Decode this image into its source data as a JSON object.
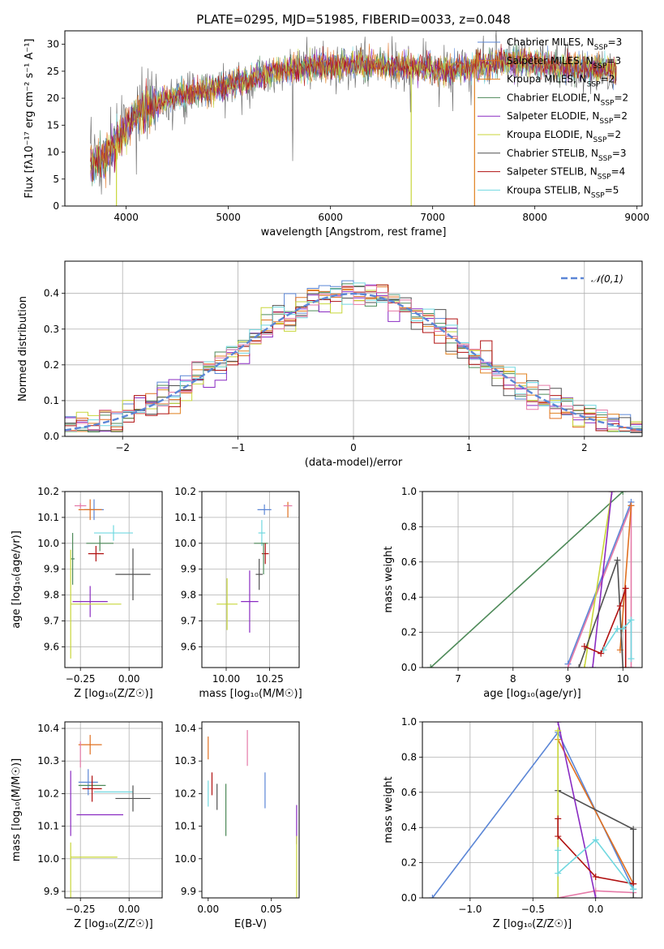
{
  "title": "PLATE=0295, MJD=51985, FIBERID=0033, z=0.048",
  "colors": {
    "chabrier_miles": "#5b86d6",
    "salpeter_miles": "#e07020",
    "kroupa_miles": "#e0801f",
    "chabrier_elodie": "#4e8a59",
    "salpeter_elodie": "#8a2bc2",
    "kroupa_elodie": "#c8d63a",
    "chabrier_stelib": "#505050",
    "salpeter_stelib": "#b01010",
    "kroupa_stelib": "#70d8e0",
    "pink": "#e57aa8"
  },
  "chart_data": [
    {
      "id": "spectrum",
      "type": "line",
      "xlabel": "wavelength [Angstrom, rest frame]",
      "ylabel": "Flux [fλ10⁻¹⁷ erg cm⁻² s⁻¹ A⁻¹]",
      "xlim": [
        3400,
        9050
      ],
      "ylim": [
        0,
        32.5
      ],
      "xticks": [
        4000,
        5000,
        6000,
        7000,
        8000,
        9000
      ],
      "yticks": [
        0,
        5,
        10,
        15,
        20,
        25,
        30
      ],
      "grid": false,
      "legend_position": "top-right",
      "legend": [
        {
          "label": "Chabrier MILES, N",
          "sub": "SSP",
          "suffix": "=3",
          "color": "#5b86d6"
        },
        {
          "label": "Salpeter MILES, N",
          "sub": "SSP",
          "suffix": "=3",
          "color": "#e07020"
        },
        {
          "label": "Kroupa MILES, N",
          "sub": "SSP",
          "suffix": "=2",
          "color": "#e0801f"
        },
        {
          "label": "Chabrier ELODIE, N",
          "sub": "SSP",
          "suffix": "=2",
          "color": "#4e8a59"
        },
        {
          "label": "Salpeter ELODIE, N",
          "sub": "SSP",
          "suffix": "=2",
          "color": "#8a2bc2"
        },
        {
          "label": "Kroupa ELODIE, N",
          "sub": "SSP",
          "suffix": "=2",
          "color": "#c8d63a"
        },
        {
          "label": "Chabrier STELIB, N",
          "sub": "SSP",
          "suffix": "=3",
          "color": "#505050"
        },
        {
          "label": "Salpeter STELIB, N",
          "sub": "SSP",
          "suffix": "=4",
          "color": "#b01010"
        },
        {
          "label": "Kroupa STELIB, N",
          "sub": "SSP",
          "suffix": "=5",
          "color": "#70d8e0"
        }
      ],
      "continuum": [
        [
          3650,
          8
        ],
        [
          3800,
          9
        ],
        [
          3950,
          13
        ],
        [
          4100,
          17
        ],
        [
          4300,
          19
        ],
        [
          4500,
          20.5
        ],
        [
          4800,
          21.5
        ],
        [
          5000,
          22.5
        ],
        [
          5200,
          23.5
        ],
        [
          5500,
          25
        ],
        [
          5800,
          25.8
        ],
        [
          6000,
          26
        ],
        [
          6300,
          26.2
        ],
        [
          6600,
          26
        ],
        [
          6900,
          25.8
        ],
        [
          7100,
          25
        ],
        [
          7400,
          25.8
        ],
        [
          7800,
          27
        ],
        [
          8200,
          26
        ],
        [
          8500,
          25.5
        ],
        [
          8800,
          25
        ]
      ],
      "dropouts": [
        {
          "x": 3905,
          "color": "#c8d63a"
        },
        {
          "x": 6790,
          "color": "#c8d63a"
        },
        {
          "x": 7410,
          "color": "#e0801f"
        }
      ]
    },
    {
      "id": "residuals",
      "type": "line",
      "xlabel": "(data-model)/error",
      "ylabel": "Normed distribution",
      "xlim": [
        -2.5,
        2.5
      ],
      "ylim": [
        0,
        0.49
      ],
      "xticks": [
        -2,
        -1,
        0,
        1,
        2
      ],
      "yticks": [
        0.0,
        0.1,
        0.2,
        0.3,
        0.4
      ],
      "grid": true,
      "legend": [
        {
          "label": "𝒩(0,1)",
          "color": "#5b86d6",
          "style": "dashed"
        }
      ],
      "legend_position": "top-right",
      "bin_width": 0.1
    },
    {
      "id": "age_vs_Z",
      "type": "scatter",
      "xlabel": "Z [log₁₀(Z/Z☉)]",
      "ylabel": "age  [log₁₀(age/yr)]",
      "xlim": [
        -0.33,
        0.17
      ],
      "ylim": [
        9.52,
        10.2
      ],
      "xticks": [
        -0.25,
        0.0
      ],
      "yticks": [
        9.6,
        9.7,
        9.8,
        9.9,
        10.0,
        10.1,
        10.2
      ],
      "grid": true,
      "points": [
        {
          "x": -0.18,
          "y": 10.13,
          "xerr": 0.05,
          "yerr": 0.04,
          "color": "#5b86d6"
        },
        {
          "x": -0.2,
          "y": 10.13,
          "xerr": 0.06,
          "yerr": 0.04,
          "color": "#e07020"
        },
        {
          "x": -0.25,
          "y": 10.145,
          "xerr": 0.03,
          "yerr": 0.01,
          "color": "#e57aa8"
        },
        {
          "x": -0.08,
          "y": 10.04,
          "xerr": 0.1,
          "yerr": 0.03,
          "color": "#70d8e0"
        },
        {
          "x": -0.15,
          "y": 10.0,
          "xerr": 0.07,
          "yerr": 0.03,
          "color": "#4e8a59"
        },
        {
          "x": -0.17,
          "y": 9.96,
          "xerr": 0.04,
          "yerr": 0.03,
          "color": "#b01010"
        },
        {
          "x": 0.02,
          "y": 9.88,
          "xerr": 0.09,
          "yerr": 0.1,
          "color": "#505050"
        },
        {
          "x": -0.29,
          "y": 9.94,
          "xerr": 0.01,
          "yerr": 0.1,
          "color": "#4e8a59"
        },
        {
          "x": -0.2,
          "y": 9.775,
          "xerr": 0.09,
          "yerr": 0.06,
          "color": "#8a2bc2"
        },
        {
          "x": -0.3,
          "y": 9.765,
          "xerr": 0.0,
          "yerr": 0.21,
          "color": "#c8d63a"
        },
        {
          "x": -0.17,
          "y": 9.765,
          "xerr": 0.13,
          "yerr": 0.0,
          "color": "#c8d63a"
        }
      ]
    },
    {
      "id": "age_vs_mass",
      "type": "scatter",
      "xlabel": "mass [log₁₀(M/M☉)]",
      "ylabel": "",
      "xlim": [
        9.86,
        10.42
      ],
      "ylim": [
        9.52,
        10.2
      ],
      "xticks": [
        10.0,
        10.25
      ],
      "yticks": [
        9.6,
        9.7,
        9.8,
        9.9,
        10.0,
        10.1,
        10.2
      ],
      "grid": true,
      "points": [
        {
          "x": 10.22,
          "y": 10.13,
          "xerr": 0.04,
          "yerr": 0.02,
          "color": "#5b86d6"
        },
        {
          "x": 10.355,
          "y": 10.13,
          "xerr": 0.0,
          "yerr": 0.03,
          "color": "#e07020"
        },
        {
          "x": 10.355,
          "y": 10.145,
          "xerr": 0.025,
          "yerr": 0.0,
          "color": "#e57aa8"
        },
        {
          "x": 10.205,
          "y": 10.04,
          "xerr": 0.02,
          "yerr": 0.05,
          "color": "#70d8e0"
        },
        {
          "x": 10.2,
          "y": 10.0,
          "xerr": 0.04,
          "yerr": 0.0,
          "color": "#4e8a59"
        },
        {
          "x": 10.225,
          "y": 9.96,
          "xerr": 0.02,
          "yerr": 0.04,
          "color": "#b01010"
        },
        {
          "x": 10.19,
          "y": 9.88,
          "xerr": 0.02,
          "yerr": 0.06,
          "color": "#505050"
        },
        {
          "x": 10.215,
          "y": 9.94,
          "xerr": 0.0,
          "yerr": 0.06,
          "color": "#4e8a59"
        },
        {
          "x": 10.135,
          "y": 9.775,
          "xerr": 0.05,
          "yerr": 0.12,
          "color": "#8a2bc2"
        },
        {
          "x": 10.005,
          "y": 9.765,
          "xerr": 0.06,
          "yerr": 0.1,
          "color": "#c8d63a"
        }
      ]
    },
    {
      "id": "mass_weight_vs_age",
      "type": "line",
      "xlabel": "age  [log₁₀(age/yr)]",
      "ylabel": "mass weight",
      "xlim": [
        6.35,
        10.35
      ],
      "ylim": [
        0,
        1.0
      ],
      "xticks": [
        7,
        8,
        9,
        10
      ],
      "yticks": [
        0.0,
        0.2,
        0.4,
        0.6,
        0.8,
        1.0
      ],
      "grid": true,
      "series": [
        {
          "color": "#4e8a59",
          "x": [
            6.5,
            10.0
          ],
          "y": [
            0.0,
            1.0
          ]
        },
        {
          "color": "#5b86d6",
          "x": [
            9.0,
            10.15
          ],
          "y": [
            0.02,
            0.94
          ]
        },
        {
          "color": "#e57aa8",
          "x": [
            9.0,
            10.15,
            10.15
          ],
          "y": [
            0.0,
            0.92,
            0.0
          ]
        },
        {
          "color": "#e07020",
          "x": [
            9.95,
            10.15
          ],
          "y": [
            0.1,
            0.92
          ]
        },
        {
          "color": "#c8d63a",
          "x": [
            9.3,
            9.8
          ],
          "y": [
            0.0,
            1.0
          ]
        },
        {
          "color": "#8a2bc2",
          "x": [
            9.45,
            9.8
          ],
          "y": [
            0.0,
            1.0
          ]
        },
        {
          "color": "#505050",
          "x": [
            9.2,
            9.9,
            10.0
          ],
          "y": [
            0.0,
            0.61,
            0.0
          ]
        },
        {
          "color": "#b01010",
          "x": [
            9.3,
            9.6,
            9.95,
            10.05,
            10.05
          ],
          "y": [
            0.12,
            0.08,
            0.35,
            0.45,
            0.0
          ]
        },
        {
          "color": "#70d8e0",
          "x": [
            9.65,
            9.9,
            10.0,
            10.15,
            10.15
          ],
          "y": [
            0.1,
            0.22,
            0.22,
            0.27,
            0.05
          ]
        }
      ]
    },
    {
      "id": "mass_vs_Z",
      "type": "scatter",
      "xlabel": "Z [log₁₀(Z/Z☉)]",
      "ylabel": "mass [log₁₀(M/M☉)]",
      "xlim": [
        -0.33,
        0.17
      ],
      "ylim": [
        9.88,
        10.42
      ],
      "xticks": [
        -0.25,
        0.0
      ],
      "yticks": [
        9.9,
        10.0,
        10.1,
        10.2,
        10.3,
        10.4
      ],
      "grid": true,
      "points": [
        {
          "x": -0.2,
          "y": 10.35,
          "xerr": 0.06,
          "yerr": 0.03,
          "color": "#e07020"
        },
        {
          "x": -0.21,
          "y": 10.235,
          "xerr": 0.05,
          "yerr": 0.04,
          "color": "#5b86d6"
        },
        {
          "x": -0.08,
          "y": 10.205,
          "xerr": 0.1,
          "yerr": 0.0,
          "color": "#70d8e0"
        },
        {
          "x": -0.19,
          "y": 10.225,
          "xerr": 0.07,
          "yerr": 0.0,
          "color": "#4e8a59"
        },
        {
          "x": -0.19,
          "y": 10.215,
          "xerr": 0.05,
          "yerr": 0.04,
          "color": "#b01010"
        },
        {
          "x": 0.02,
          "y": 10.185,
          "xerr": 0.09,
          "yerr": 0.04,
          "color": "#505050"
        },
        {
          "x": -0.15,
          "y": 10.135,
          "xerr": 0.12,
          "yerr": 0.0,
          "color": "#8a2bc2"
        },
        {
          "x": -0.3,
          "y": 10.17,
          "xerr": 0.0,
          "yerr": 0.1,
          "color": "#8a2bc2"
        },
        {
          "x": -0.18,
          "y": 10.005,
          "xerr": 0.12,
          "yerr": 0.0,
          "color": "#c8d63a"
        },
        {
          "x": -0.3,
          "y": 9.95,
          "xerr": 0.0,
          "yerr": 0.1,
          "color": "#c8d63a"
        },
        {
          "x": -0.25,
          "y": 10.32,
          "xerr": 0.0,
          "yerr": 0.04,
          "color": "#e57aa8"
        }
      ]
    },
    {
      "id": "mass_vs_ebv",
      "type": "scatter",
      "xlabel": "E(B-V)",
      "ylabel": "",
      "xlim": [
        -0.005,
        0.072
      ],
      "ylim": [
        9.88,
        10.42
      ],
      "xticks": [
        0.0,
        0.05
      ],
      "tick_labels": [
        "0.00",
        "0.05"
      ],
      "yticks": [
        9.9,
        10.0,
        10.1,
        10.2,
        10.3,
        10.4
      ],
      "grid": false,
      "points": [
        {
          "x": 0.0,
          "y": 10.34,
          "yerr": 0.035,
          "color": "#e07020"
        },
        {
          "x": 0.0,
          "y": 10.2,
          "yerr": 0.04,
          "color": "#70d8e0"
        },
        {
          "x": 0.003,
          "y": 10.23,
          "yerr": 0.035,
          "color": "#b01010"
        },
        {
          "x": 0.007,
          "y": 10.19,
          "yerr": 0.04,
          "color": "#505050"
        },
        {
          "x": 0.014,
          "y": 10.15,
          "yerr": 0.08,
          "color": "#4e8a59"
        },
        {
          "x": 0.031,
          "y": 10.34,
          "yerr": 0.055,
          "color": "#e57aa8"
        },
        {
          "x": 0.045,
          "y": 10.21,
          "yerr": 0.055,
          "color": "#5b86d6"
        },
        {
          "x": 0.07,
          "y": 10.105,
          "yerr": 0.06,
          "color": "#8a2bc2"
        },
        {
          "x": 0.07,
          "y": 9.97,
          "yerr": 0.1,
          "color": "#c8d63a"
        }
      ]
    },
    {
      "id": "mass_weight_vs_Z",
      "type": "line",
      "xlabel": "Z [log₁₀(Z/Z☉)]",
      "ylabel": "mass weight",
      "xlim": [
        -1.38,
        0.37
      ],
      "ylim": [
        0,
        1.0
      ],
      "xticks": [
        -1.0,
        -0.5,
        0.0
      ],
      "tick_labels": [
        "−1.0",
        "−0.5",
        "0.0"
      ],
      "yticks": [
        0.0,
        0.2,
        0.4,
        0.6,
        0.8,
        1.0
      ],
      "grid": true,
      "series": [
        {
          "color": "#5b86d6",
          "x": [
            -1.3,
            -0.3,
            0.3
          ],
          "y": [
            0.0,
            0.94,
            0.05
          ]
        },
        {
          "color": "#e07020",
          "x": [
            -0.3,
            0.3
          ],
          "y": [
            0.9,
            0.08
          ]
        },
        {
          "color": "#e57aa8",
          "x": [
            -0.3,
            0.0,
            0.3
          ],
          "y": [
            0.0,
            0.04,
            0.03
          ]
        },
        {
          "color": "#505050",
          "x": [
            -0.3,
            0.3,
            0.3
          ],
          "y": [
            0.61,
            0.39,
            0.0
          ]
        },
        {
          "color": "#8a2bc2",
          "x": [
            -0.3,
            0.0
          ],
          "y": [
            1.0,
            0.0
          ]
        },
        {
          "color": "#c8d63a",
          "x": [
            -0.3,
            -0.3
          ],
          "y": [
            0.0,
            0.95
          ]
        },
        {
          "color": "#b01010",
          "x": [
            -0.3,
            -0.3,
            0.0,
            0.3
          ],
          "y": [
            0.45,
            0.35,
            0.12,
            0.08
          ]
        },
        {
          "color": "#70d8e0",
          "x": [
            -0.3,
            -0.3,
            0.0,
            0.3
          ],
          "y": [
            0.27,
            0.14,
            0.33,
            0.05
          ]
        }
      ]
    }
  ]
}
